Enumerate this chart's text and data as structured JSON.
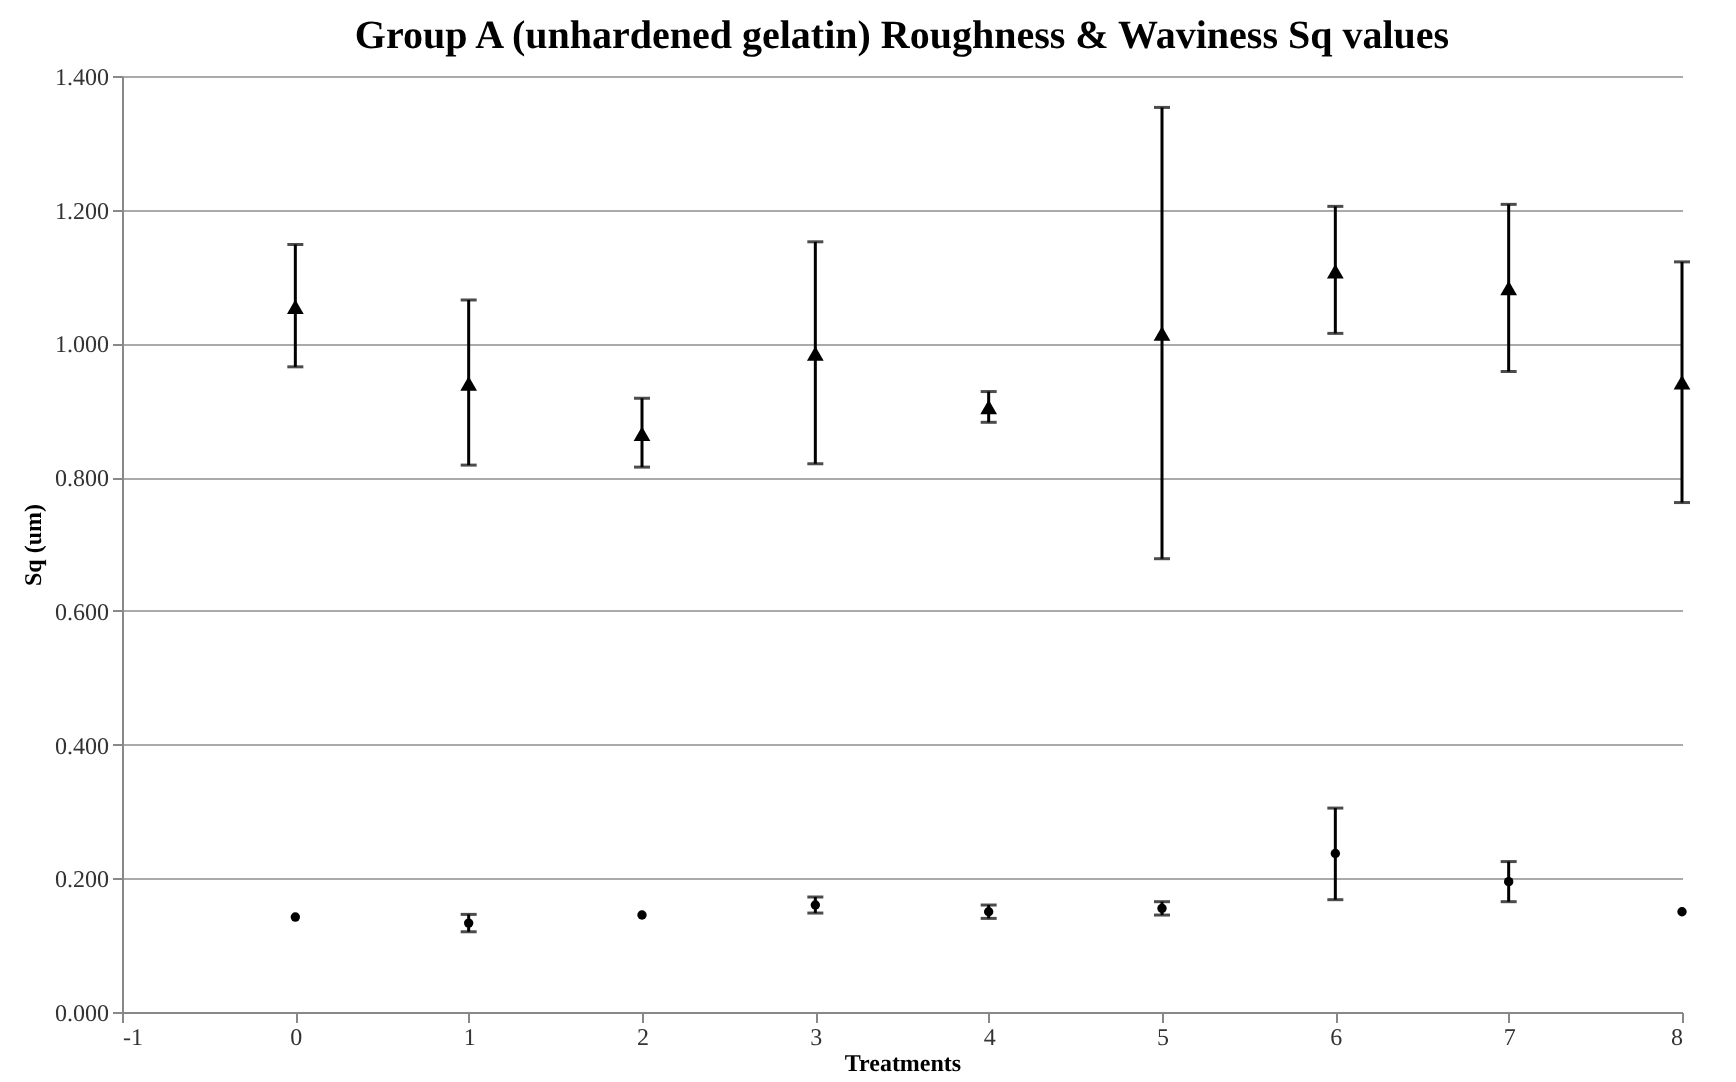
{
  "chart_data": {
    "type": "scatter",
    "title": "Group A (unhardened gelatin) Roughness & Waviness Sq values",
    "xlabel": "Treatments",
    "ylabel": "Sq (um)",
    "x": [
      0,
      1,
      2,
      3,
      4,
      5,
      6,
      7,
      8
    ],
    "series": [
      {
        "color": "#000000",
        "marker": "triangle",
        "values": [
          1.055,
          0.94,
          0.865,
          0.985,
          0.905,
          1.015,
          1.108,
          1.083,
          0.942
        ],
        "errors": [
          [
            0.965,
            1.148
          ],
          [
            0.818,
            1.065
          ],
          [
            0.815,
            0.918
          ],
          [
            0.82,
            1.152
          ],
          [
            0.882,
            0.928
          ],
          [
            0.678,
            1.353
          ],
          [
            1.015,
            1.205
          ],
          [
            0.958,
            1.208
          ],
          [
            0.762,
            1.122
          ]
        ]
      },
      {
        "color": "#000000",
        "marker": "circle",
        "values": [
          0.142,
          0.133,
          0.145,
          0.16,
          0.15,
          0.155,
          0.237,
          0.195,
          0.15
        ],
        "errors": [
          null,
          [
            0.12,
            0.146
          ],
          null,
          [
            0.148,
            0.172
          ],
          [
            0.14,
            0.16
          ],
          [
            0.145,
            0.165
          ],
          [
            0.168,
            0.305
          ],
          [
            0.165,
            0.225
          ],
          null
        ]
      }
    ],
    "xlim": [
      -1,
      8
    ],
    "xticks": [
      -1,
      0,
      1,
      2,
      3,
      4,
      5,
      6,
      7,
      8
    ],
    "ylim": [
      0,
      1.4
    ],
    "yticks": [
      {
        "value": 0,
        "label": "0.000"
      },
      {
        "value": 0.2,
        "label": "0.200"
      },
      {
        "value": 0.4,
        "label": "0.400"
      },
      {
        "value": 0.6,
        "label": "0.600"
      },
      {
        "value": 0.8,
        "label": "0.800"
      },
      {
        "value": 1.0,
        "label": "1.000"
      },
      {
        "value": 1.2,
        "label": "1.200"
      },
      {
        "value": 1.4,
        "label": "1.400"
      }
    ],
    "grid": "y"
  }
}
